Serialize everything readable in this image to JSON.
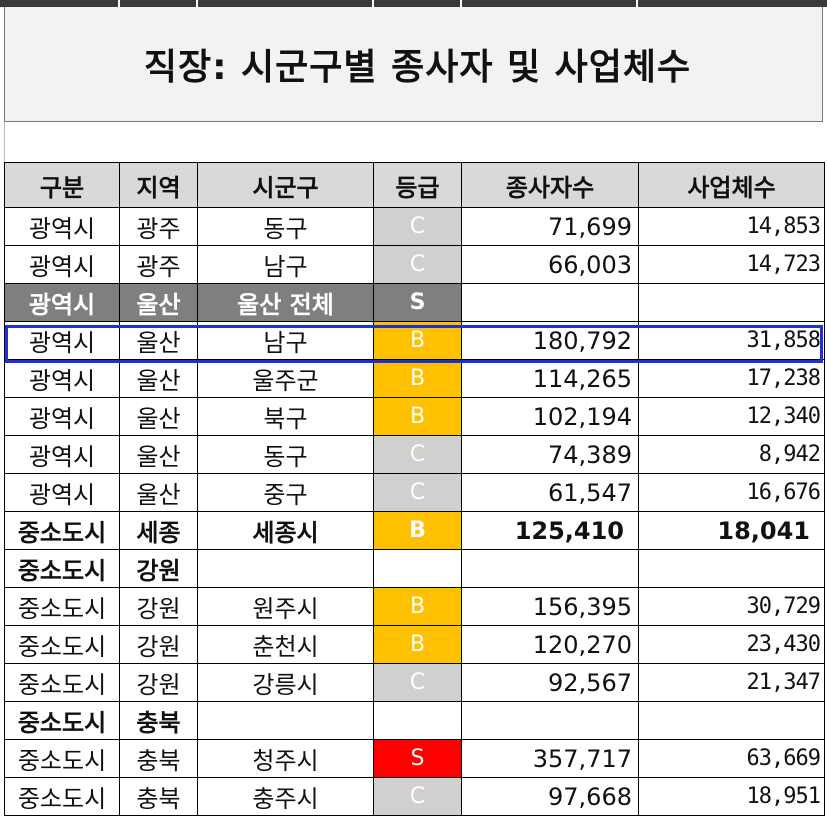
{
  "title": "직장: 시군구별 종사자 및 사업체수",
  "headers": {
    "category": "구분",
    "region": "지역",
    "district": "시군구",
    "grade": "등급",
    "employees": "종사자수",
    "businesses": "사업체수"
  },
  "rows": [
    {
      "category": "광역시",
      "region": "광주",
      "district": "동구",
      "grade": "C",
      "employees": "71,699",
      "businesses": "14,853",
      "type": "normal"
    },
    {
      "category": "광역시",
      "region": "광주",
      "district": "남구",
      "grade": "C",
      "employees": "66,003",
      "businesses": "14,723",
      "type": "normal"
    },
    {
      "category": "광역시",
      "region": "울산",
      "district": "울산 전체",
      "grade": "S",
      "employees": "",
      "businesses": "",
      "type": "total"
    },
    {
      "category": "광역시",
      "region": "울산",
      "district": "남구",
      "grade": "B",
      "employees": "180,792",
      "businesses": "31,858",
      "type": "highlighted"
    },
    {
      "category": "광역시",
      "region": "울산",
      "district": "울주군",
      "grade": "B",
      "employees": "114,265",
      "businesses": "17,238",
      "type": "normal"
    },
    {
      "category": "광역시",
      "region": "울산",
      "district": "북구",
      "grade": "B",
      "employees": "102,194",
      "businesses": "12,340",
      "type": "normal"
    },
    {
      "category": "광역시",
      "region": "울산",
      "district": "동구",
      "grade": "C",
      "employees": "74,389",
      "businesses": "8,942",
      "type": "normal"
    },
    {
      "category": "광역시",
      "region": "울산",
      "district": "중구",
      "grade": "C",
      "employees": "61,547",
      "businesses": "16,676",
      "type": "normal"
    },
    {
      "category": "중소도시",
      "region": "세종",
      "district": "세종시",
      "grade": "B",
      "employees": "125,410",
      "businesses": "18,041",
      "type": "bold"
    },
    {
      "category": "중소도시",
      "region": "강원",
      "district": "",
      "grade": "",
      "employees": "",
      "businesses": "",
      "type": "bold"
    },
    {
      "category": "중소도시",
      "region": "강원",
      "district": "원주시",
      "grade": "B",
      "employees": "156,395",
      "businesses": "30,729",
      "type": "normal"
    },
    {
      "category": "중소도시",
      "region": "강원",
      "district": "춘천시",
      "grade": "B",
      "employees": "120,270",
      "businesses": "23,430",
      "type": "normal"
    },
    {
      "category": "중소도시",
      "region": "강원",
      "district": "강릉시",
      "grade": "C",
      "employees": "92,567",
      "businesses": "21,347",
      "type": "normal"
    },
    {
      "category": "중소도시",
      "region": "충북",
      "district": "",
      "grade": "",
      "employees": "",
      "businesses": "",
      "type": "bold"
    },
    {
      "category": "중소도시",
      "region": "충북",
      "district": "청주시",
      "grade": "S",
      "employees": "357,717",
      "businesses": "63,669",
      "type": "normal"
    },
    {
      "category": "중소도시",
      "region": "충북",
      "district": "충주시",
      "grade": "C",
      "employees": "97,668",
      "businesses": "18,951",
      "type": "normal"
    }
  ],
  "colors": {
    "grade_S": "#ff0000",
    "grade_B": "#ffc000",
    "grade_C": "#d0d0d0",
    "total_row": "#7f7f7f",
    "highlight": "#1f2fd6"
  }
}
